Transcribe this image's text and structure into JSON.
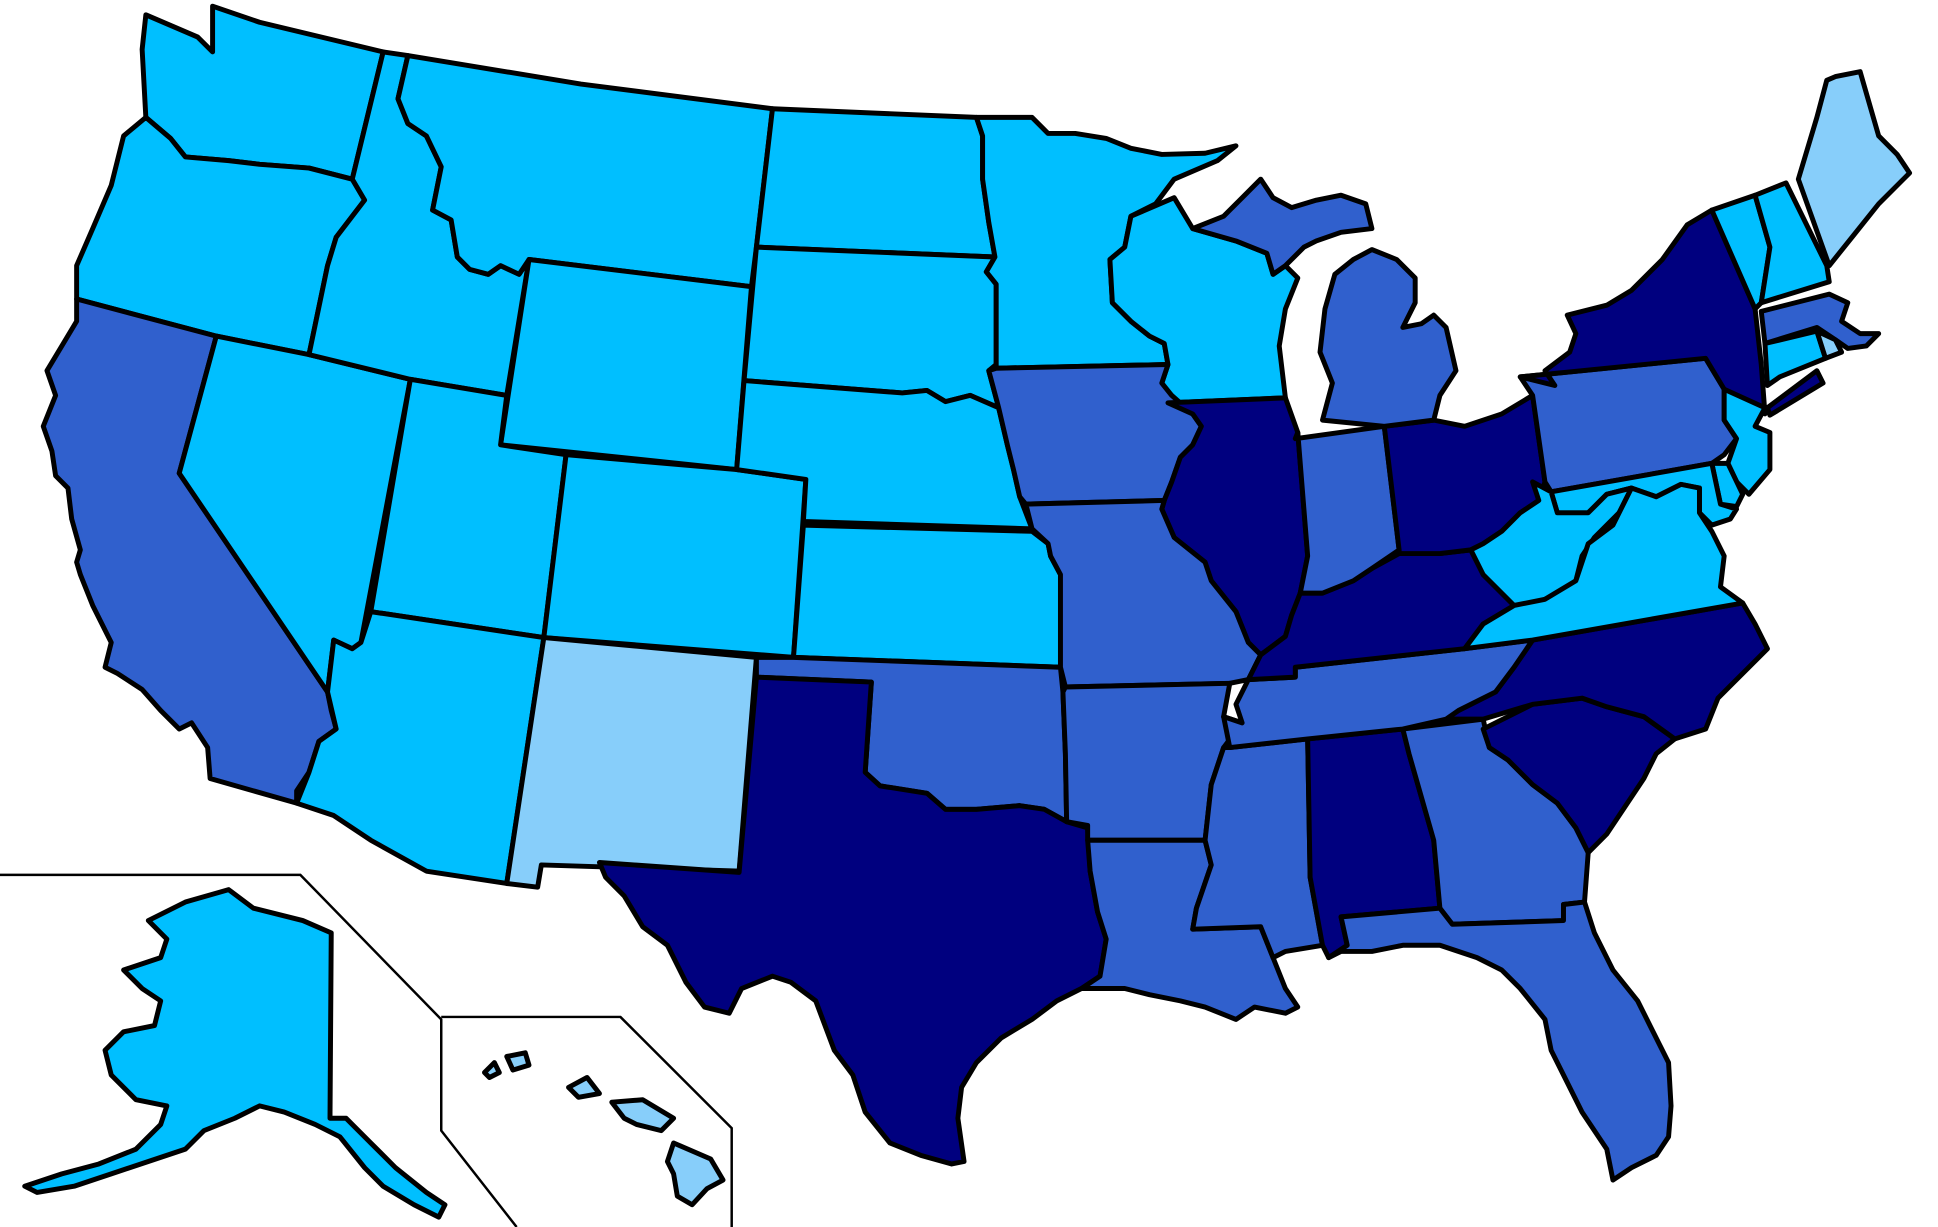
{
  "palette": {
    "light": "#87CEFA",
    "deep": "#00BFFF",
    "medium": "#3060CD",
    "navy": "#00007F"
  },
  "state_fill_class": {
    "WA": "deep",
    "OR": "deep",
    "CA": "medium",
    "NV": "deep",
    "ID": "deep",
    "MT": "deep",
    "WY": "deep",
    "UT": "deep",
    "AZ": "deep",
    "CO": "deep",
    "NM": "light",
    "ND": "deep",
    "SD": "deep",
    "NE": "deep",
    "KS": "deep",
    "OK": "medium",
    "TX": "navy",
    "MN": "deep",
    "IA": "medium",
    "MO": "medium",
    "AR": "medium",
    "LA": "medium",
    "WI": "deep",
    "IL": "navy",
    "MI": "medium",
    "IN": "medium",
    "OH": "navy",
    "KY": "navy",
    "TN": "medium",
    "MS": "medium",
    "AL": "navy",
    "GA": "medium",
    "FL": "medium",
    "SC": "navy",
    "NC": "navy",
    "VA": "deep",
    "WV": "deep",
    "MD": "deep",
    "DE": "deep",
    "PA": "medium",
    "NJ": "deep",
    "NY": "navy",
    "CT": "deep",
    "RI": "light",
    "MA": "medium",
    "VT": "deep",
    "NH": "deep",
    "ME": "light",
    "AK": "deep",
    "HI": "light"
  }
}
